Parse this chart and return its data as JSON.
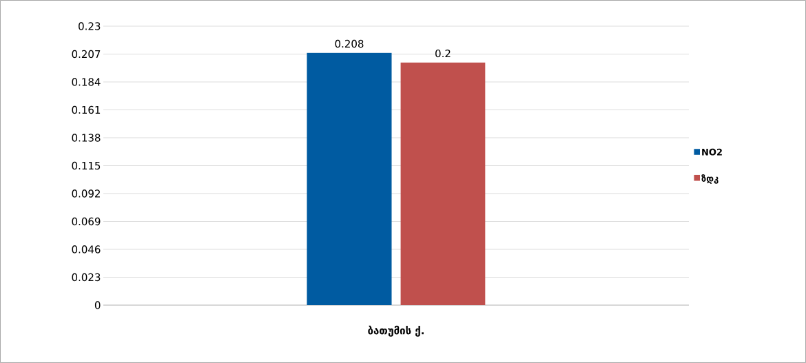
{
  "chart_data": {
    "type": "bar",
    "categories": [
      "ბათუმის ქ."
    ],
    "series": [
      {
        "name": "NO2",
        "color": "#005ba1",
        "values": [
          0.208
        ]
      },
      {
        "name": "ზდკ",
        "color": "#c0504d",
        "values": [
          0.2
        ]
      }
    ],
    "ylim": [
      0,
      0.23
    ],
    "yticks": [
      0,
      0.023,
      0.046,
      0.069,
      0.092,
      0.115,
      0.138,
      0.161,
      0.184,
      0.207,
      0.23
    ],
    "grid": "y",
    "legend": "right",
    "data_labels": true
  }
}
